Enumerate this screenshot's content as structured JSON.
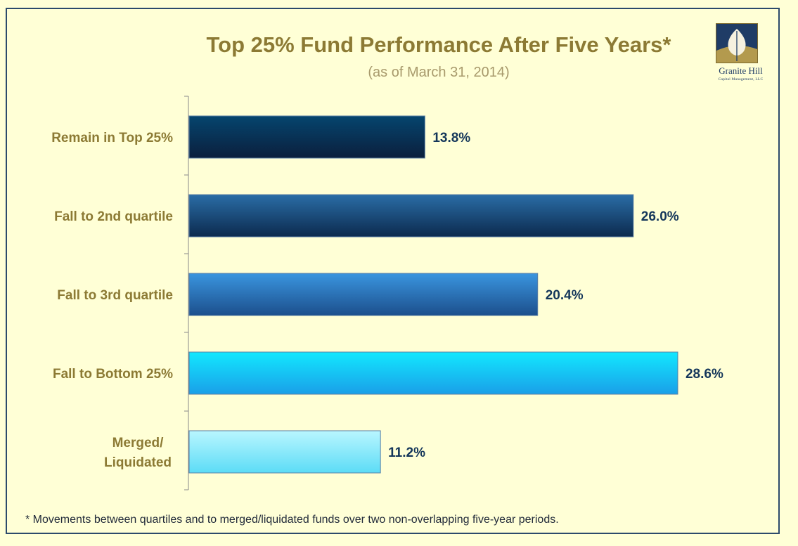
{
  "title": "Top 25% Fund Performance After Five Years*",
  "subtitle": "(as of March 31, 2014)",
  "logo": {
    "name": "Granite Hill",
    "sub": "Capital Management, LLC"
  },
  "footnote": "* Movements between quartiles and to merged/liquidated  funds  over two non-overlapping five-year periods.",
  "colors": {
    "background": "#ffffd6",
    "title": "#8c7a34",
    "value_label": "#14365a"
  },
  "chart_data": {
    "type": "bar",
    "orientation": "horizontal",
    "categories": [
      "Remain in Top 25%",
      "Fall to 2nd quartile",
      "Fall to 3rd quartile",
      "Fall to Bottom 25%",
      "Merged/\nLiquidated"
    ],
    "values": [
      13.8,
      26.0,
      20.4,
      28.6,
      11.2
    ],
    "value_labels": [
      "13.8%",
      "26.0%",
      "20.4%",
      "28.6%",
      "11.2%"
    ],
    "bar_colors": [
      [
        "#05456e",
        "#0b1f3d"
      ],
      [
        "#2a6da6",
        "#0c2a4e"
      ],
      [
        "#3a95df",
        "#1c4f8c"
      ],
      [
        "#12e8ff",
        "#1a9fe8"
      ],
      [
        "#b9f6ff",
        "#5cdcf6"
      ]
    ],
    "xlim": [
      0,
      30
    ],
    "grid": false,
    "legend": "none",
    "title": "Top 25% Fund Performance After Five Years*",
    "subtitle": "(as of March 31, 2014)"
  }
}
